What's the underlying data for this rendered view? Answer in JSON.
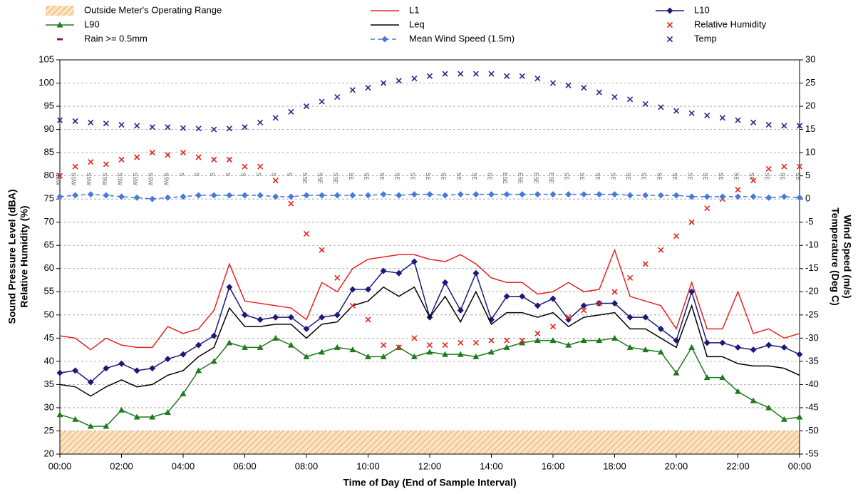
{
  "chart_data": {
    "type": "line",
    "x_label": "Time of Day (End of Sample Interval)",
    "y_label": [
      "Sound Pressure Level (dBA)",
      "Relative Humidity (%)"
    ],
    "y2_label": [
      "Wind Speed (m/s)",
      "Temperature (Deg C)"
    ],
    "categories": [
      "00:00",
      null,
      null,
      null,
      "02:00",
      null,
      null,
      null,
      "04:00",
      null,
      null,
      null,
      "06:00",
      null,
      null,
      null,
      "08:00",
      null,
      null,
      null,
      "10:00",
      null,
      null,
      null,
      "12:00",
      null,
      null,
      null,
      "14:00",
      null,
      null,
      null,
      "16:00",
      null,
      null,
      null,
      "18:00",
      null,
      null,
      null,
      "20:00",
      null,
      null,
      null,
      "22:00",
      null,
      null,
      null,
      "00:00"
    ],
    "ylim": [
      20,
      105
    ],
    "yticks": [
      20,
      25,
      30,
      35,
      40,
      45,
      50,
      55,
      60,
      65,
      70,
      75,
      80,
      85,
      90,
      95,
      100,
      105
    ],
    "y2lim": [
      -55,
      30
    ],
    "y2ticks": [
      -55,
      -50,
      -45,
      -40,
      -35,
      -30,
      -25,
      -20,
      -15,
      -10,
      -5,
      0,
      5,
      10,
      15,
      20,
      25,
      30
    ],
    "grid": true,
    "wind_direction": [
      "SSW",
      "SSW",
      "SSW",
      "SSW",
      "SSW",
      "SSW",
      "SSW",
      "SSW",
      "S",
      "S",
      "S",
      "S",
      "S",
      "S",
      "S",
      "S",
      "SSE",
      "SSE",
      "SSE",
      "SE",
      "SE",
      "SE",
      "SE",
      "SE",
      "SE",
      "SE",
      "SE",
      "SE",
      "SE",
      "ESE",
      "ESE",
      "ESE",
      "ESE",
      "SE",
      "SE",
      "SE",
      "SE",
      "SE",
      "SE",
      "SE",
      "SE",
      "SE",
      "SE",
      "SE",
      "SE",
      "SE",
      "SE",
      "SE",
      "SE"
    ],
    "series": [
      {
        "name": "Outside Meter's Operating Range",
        "color": "#f0b070",
        "range": [
          20,
          25
        ]
      },
      {
        "name": "L1",
        "color": "#e8231f",
        "line": "solid",
        "values": [
          45.5,
          45,
          42.5,
          45,
          43.5,
          43,
          43,
          47.5,
          46,
          47,
          51,
          61,
          53,
          52.5,
          52,
          51.5,
          49,
          57,
          55,
          60,
          62,
          62.5,
          63,
          63,
          62,
          61.5,
          63,
          61,
          58,
          57,
          57,
          54.5,
          55,
          57,
          55,
          55.5,
          64,
          54,
          53,
          52,
          47,
          57,
          47,
          47,
          55,
          46,
          47,
          45,
          46
        ]
      },
      {
        "name": "L10",
        "color": "#1a1a7a",
        "line": "solid",
        "marker": "diamond",
        "values": [
          37.5,
          38,
          35.5,
          38.5,
          39.5,
          38,
          38.5,
          40.5,
          41.5,
          43.5,
          45.5,
          56,
          50,
          49,
          49.5,
          49.5,
          47,
          49.5,
          50,
          55.5,
          55.5,
          59.5,
          59,
          61.5,
          49.5,
          57,
          51,
          59,
          49,
          54,
          54,
          52,
          53.5,
          49,
          52,
          52.5,
          52.5,
          49.5,
          49.5,
          47,
          44.5,
          55,
          44,
          44,
          43,
          42.5,
          43.5,
          43,
          41.5
        ]
      },
      {
        "name": "L90",
        "color": "#1e7a1e",
        "line": "solid",
        "marker": "triangle",
        "values": [
          28.5,
          27.5,
          26,
          26,
          29.5,
          28,
          28,
          29,
          33,
          38,
          40,
          44,
          43,
          43,
          45,
          43.5,
          41,
          42,
          43,
          42.5,
          41,
          41,
          43,
          41,
          42,
          41.5,
          41.5,
          41,
          42,
          43,
          44,
          44.5,
          44.5,
          43.5,
          44.5,
          44.5,
          45,
          43,
          42.5,
          42,
          37.5,
          43,
          36.5,
          36.5,
          33.5,
          31.5,
          30,
          27.5,
          28
        ]
      },
      {
        "name": "Leq",
        "color": "#000000",
        "line": "solid",
        "values": [
          35,
          34.5,
          32.5,
          34.5,
          36,
          34.5,
          35,
          37,
          38,
          41,
          43,
          51.5,
          47.5,
          47.5,
          48,
          48,
          45,
          48,
          48.5,
          52,
          53,
          56,
          54,
          56,
          49.5,
          54,
          48.5,
          55,
          48,
          50.5,
          50.5,
          49.5,
          50.5,
          47.5,
          49.5,
          50,
          50.5,
          47,
          47,
          45,
          43,
          52,
          41,
          41,
          39.5,
          39,
          39,
          38.5,
          37
        ]
      },
      {
        "name": "Relative Humidity",
        "color": "#e8231f",
        "marker": "x",
        "values": [
          80,
          82,
          83,
          82.5,
          83.5,
          84,
          85,
          84.5,
          85,
          84,
          83.5,
          83.5,
          82,
          82,
          79,
          74,
          67.5,
          64,
          58,
          52,
          49,
          43.5,
          43,
          45,
          43.5,
          43.5,
          44,
          44,
          44.5,
          44.5,
          44.5,
          46,
          47.5,
          49.5,
          51,
          52.5,
          55,
          58,
          61,
          64,
          67,
          70,
          73,
          75,
          77,
          79,
          81.5,
          82,
          82
        ]
      },
      {
        "name": "Rain >= 0.5mm",
        "color": "#7a1a6a",
        "marker": "dash"
      },
      {
        "name": "Mean Wind Speed (1.5m)",
        "color": "#4a78dc",
        "line": "dashed",
        "marker": "diamond",
        "axis": "y2",
        "values": [
          0.5,
          0.8,
          1,
          0.8,
          0.5,
          0.3,
          0,
          0.3,
          0.5,
          0.8,
          0.8,
          0.8,
          0.8,
          0.8,
          0.5,
          0.5,
          0.8,
          0.8,
          0.8,
          0.8,
          0.8,
          1,
          0.8,
          1,
          1,
          0.8,
          1,
          1,
          1,
          1,
          1,
          1,
          1,
          1,
          1,
          1,
          1,
          0.8,
          0.8,
          0.8,
          0.8,
          0.5,
          0.5,
          0.5,
          0.5,
          0.5,
          0.3,
          0.5,
          0.3
        ]
      },
      {
        "name": "Temp",
        "color": "#1f2a8a",
        "marker": "x",
        "axis": "y2",
        "values": [
          17,
          16.8,
          16.5,
          16.3,
          16,
          15.8,
          15.5,
          15.5,
          15.3,
          15.2,
          15,
          15.2,
          15.5,
          16.5,
          17.5,
          18.8,
          20,
          21,
          22,
          23.5,
          24,
          25,
          25.5,
          26,
          26.5,
          27,
          27,
          27,
          27,
          26.5,
          26.5,
          26,
          25,
          24.5,
          24,
          23,
          22,
          21.5,
          20.5,
          19.8,
          19,
          18.5,
          18,
          17.5,
          17,
          16.5,
          16,
          15.8,
          15.8
        ]
      }
    ]
  }
}
